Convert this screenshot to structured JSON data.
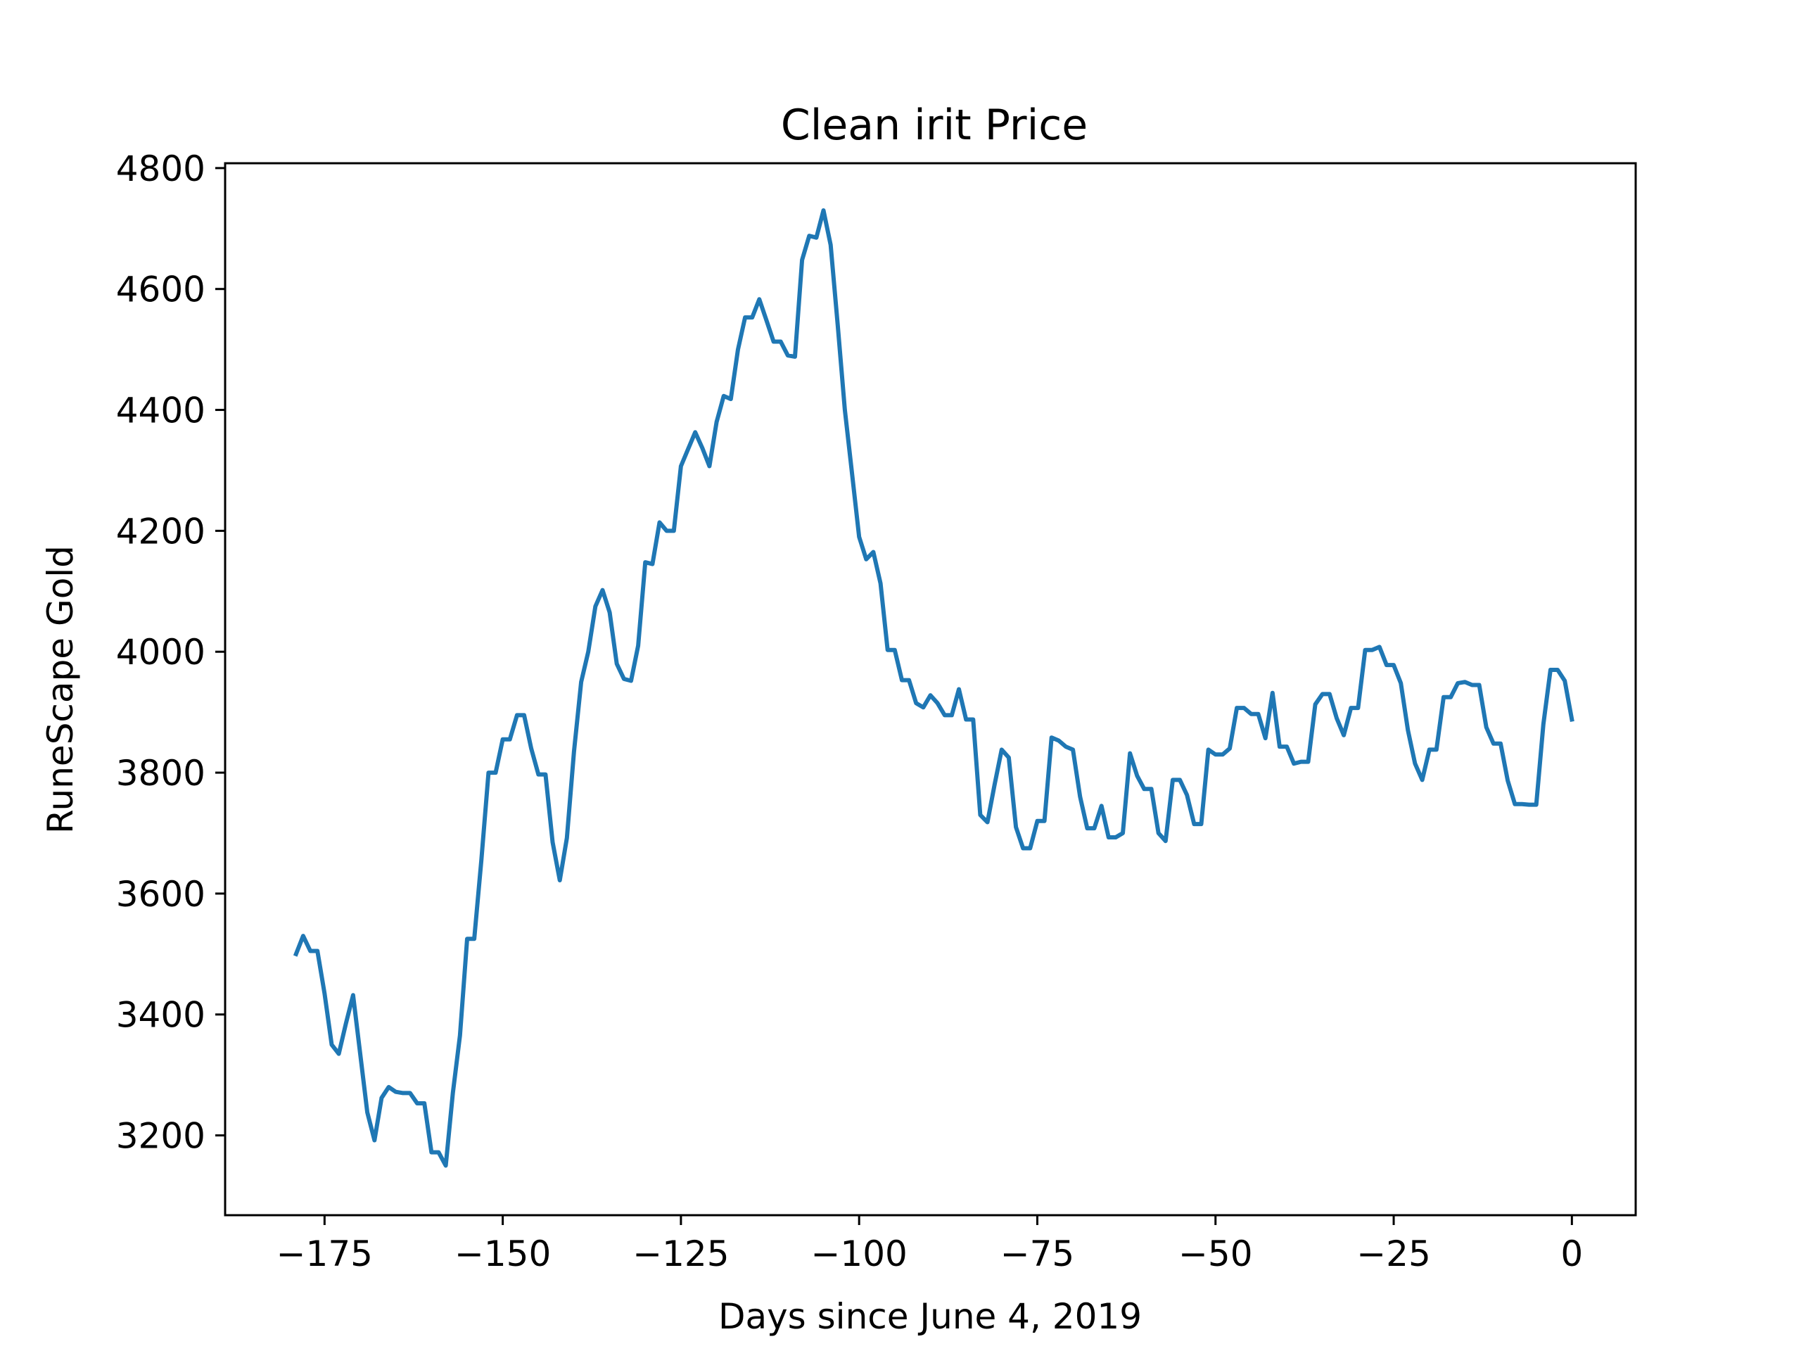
{
  "chart_data": {
    "type": "line",
    "title": "Clean irit Price",
    "xlabel": "Days since June 4, 2019",
    "ylabel": "RuneScape Gold",
    "xlim": [
      -188.95,
      8.95
    ],
    "ylim": [
      3068,
      4808
    ],
    "xticks": [
      -175,
      -150,
      -125,
      -100,
      -75,
      -50,
      -25,
      0
    ],
    "xtick_labels": [
      "−175",
      "−150",
      "−125",
      "−100",
      "−75",
      "−50",
      "−25",
      "0"
    ],
    "yticks": [
      3200,
      3400,
      3600,
      3800,
      4000,
      4200,
      4400,
      4600,
      4800
    ],
    "ytick_labels": [
      "3200",
      "3400",
      "3600",
      "3800",
      "4000",
      "4200",
      "4400",
      "4600",
      "4800"
    ],
    "grid": false,
    "legend": null,
    "series": [
      {
        "color": "#1f77b4",
        "x": [
          -179,
          -178,
          -177,
          -176,
          -175,
          -174,
          -173,
          -172,
          -171,
          -170,
          -169,
          -168,
          -167,
          -166,
          -165,
          -164,
          -163,
          -162,
          -161,
          -160,
          -159,
          -158,
          -157,
          -156,
          -155,
          -154,
          -153,
          -152,
          -151,
          -150,
          -149,
          -148,
          -147,
          -146,
          -145,
          -144,
          -143,
          -142,
          -141,
          -140,
          -139,
          -138,
          -137,
          -136,
          -135,
          -134,
          -133,
          -132,
          -131,
          -130,
          -129,
          -128,
          -127,
          -126,
          -125,
          -124,
          -123,
          -122,
          -121,
          -120,
          -119,
          -118,
          -117,
          -116,
          -115,
          -114,
          -113,
          -112,
          -111,
          -110,
          -109,
          -108,
          -107,
          -106,
          -105,
          -104,
          -103,
          -102,
          -101,
          -100,
          -99,
          -98,
          -97,
          -96,
          -95,
          -94,
          -93,
          -92,
          -91,
          -90,
          -89,
          -88,
          -87,
          -86,
          -85,
          -84,
          -83,
          -82,
          -81,
          -80,
          -79,
          -78,
          -77,
          -76,
          -75,
          -74,
          -73,
          -72,
          -71,
          -70,
          -69,
          -68,
          -67,
          -66,
          -65,
          -64,
          -63,
          -62,
          -61,
          -60,
          -59,
          -58,
          -57,
          -56,
          -55,
          -54,
          -53,
          -52,
          -51,
          -50,
          -49,
          -48,
          -47,
          -46,
          -45,
          -44,
          -43,
          -42,
          -41,
          -40,
          -39,
          -38,
          -37,
          -36,
          -35,
          -34,
          -33,
          -32,
          -31,
          -30,
          -29,
          -28,
          -27,
          -26,
          -25,
          -24,
          -23,
          -22,
          -21,
          -20,
          -19,
          -18,
          -17,
          -16,
          -15,
          -14,
          -13,
          -12,
          -11,
          -10,
          -9,
          -8,
          -7,
          -6,
          -5,
          -4,
          -3,
          -2,
          -1,
          0
        ],
        "y": [
          3500,
          3530,
          3505,
          3505,
          3435,
          3350,
          3335,
          3385,
          3432,
          3335,
          3238,
          3192,
          3262,
          3280,
          3272,
          3270,
          3270,
          3253,
          3253,
          3172,
          3172,
          3150,
          3270,
          3365,
          3525,
          3525,
          3655,
          3800,
          3800,
          3855,
          3855,
          3895,
          3895,
          3840,
          3797,
          3797,
          3685,
          3622,
          3692,
          3835,
          3950,
          4000,
          4075,
          4102,
          4065,
          3980,
          3955,
          3952,
          4010,
          4148,
          4145,
          4214,
          4200,
          4200,
          4307,
          4335,
          4363,
          4337,
          4307,
          4380,
          4423,
          4418,
          4500,
          4553,
          4553,
          4583,
          4548,
          4513,
          4513,
          4490,
          4488,
          4648,
          4688,
          4685,
          4730,
          4673,
          4540,
          4400,
          4295,
          4190,
          4153,
          4165,
          4113,
          4003,
          4003,
          3953,
          3953,
          3915,
          3908,
          3928,
          3915,
          3895,
          3895,
          3938,
          3888,
          3888,
          3730,
          3718,
          3780,
          3838,
          3825,
          3710,
          3675,
          3675,
          3720,
          3720,
          3858,
          3853,
          3843,
          3838,
          3760,
          3708,
          3708,
          3745,
          3693,
          3693,
          3700,
          3832,
          3795,
          3773,
          3773,
          3700,
          3687,
          3788,
          3788,
          3763,
          3715,
          3715,
          3838,
          3830,
          3830,
          3840,
          3907,
          3907,
          3897,
          3897,
          3857,
          3932,
          3843,
          3843,
          3815,
          3818,
          3818,
          3913,
          3930,
          3930,
          3890,
          3862,
          3907,
          3907,
          4003,
          4003,
          4008,
          3978,
          3978,
          3948,
          3870,
          3815,
          3788,
          3838,
          3838,
          3925,
          3925,
          3948,
          3950,
          3945,
          3945,
          3875,
          3848,
          3848,
          3787,
          3748,
          3748,
          3747,
          3747,
          3880,
          3970,
          3970,
          3952,
          3888
        ]
      }
    ]
  }
}
